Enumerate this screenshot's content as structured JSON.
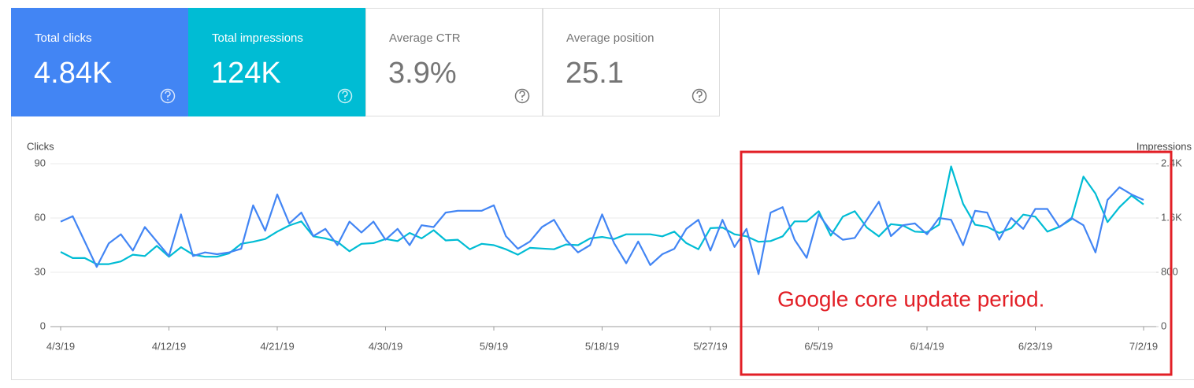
{
  "cards": [
    {
      "label": "Total clicks",
      "value": "4.84K"
    },
    {
      "label": "Total impressions",
      "value": "124K"
    },
    {
      "label": "Average CTR",
      "value": "3.9%"
    },
    {
      "label": "Average position",
      "value": "25.1"
    }
  ],
  "annotation": "Google core update period.",
  "chart_data": {
    "type": "line",
    "y_label": "Clicks",
    "y2_label": "Impressions",
    "categories": [
      "4/3/19",
      null,
      null,
      null,
      null,
      null,
      null,
      null,
      null,
      "4/12/19",
      null,
      null,
      null,
      null,
      null,
      null,
      null,
      null,
      "4/21/19",
      null,
      null,
      null,
      null,
      null,
      null,
      null,
      null,
      "4/30/19",
      null,
      null,
      null,
      null,
      null,
      null,
      null,
      null,
      "5/9/19",
      null,
      null,
      null,
      null,
      null,
      null,
      null,
      null,
      "5/18/19",
      null,
      null,
      null,
      null,
      null,
      null,
      null,
      null,
      "5/27/19",
      null,
      null,
      null,
      null,
      null,
      null,
      null,
      null,
      "6/5/19",
      null,
      null,
      null,
      null,
      null,
      null,
      null,
      null,
      "6/14/19",
      null,
      null,
      null,
      null,
      null,
      null,
      null,
      null,
      "6/23/19",
      null,
      null,
      null,
      null,
      null,
      null,
      null,
      null,
      "7/2/19"
    ],
    "series": [
      {
        "color": "#00bcd4",
        "axis": "y2",
        "values": [
          1100,
          1010,
          1010,
          920,
          920,
          960,
          1060,
          1040,
          1190,
          1030,
          1170,
          1060,
          1030,
          1030,
          1080,
          1220,
          1250,
          1290,
          1400,
          1490,
          1550,
          1330,
          1300,
          1250,
          1110,
          1220,
          1230,
          1290,
          1260,
          1380,
          1300,
          1420,
          1270,
          1280,
          1140,
          1220,
          1200,
          1140,
          1060,
          1160,
          1150,
          1140,
          1210,
          1200,
          1300,
          1320,
          1290,
          1360,
          1360,
          1360,
          1330,
          1400,
          1230,
          1140,
          1450,
          1460,
          1360,
          1330,
          1250,
          1260,
          1330,
          1550,
          1550,
          1700,
          1340,
          1620,
          1700,
          1460,
          1330,
          1510,
          1490,
          1400,
          1390,
          1500,
          2360,
          1810,
          1500,
          1470,
          1380,
          1450,
          1650,
          1620,
          1400,
          1470,
          1580,
          2210,
          1960,
          1540,
          1760,
          1930,
          1800
        ]
      },
      {
        "color": "#4285f4",
        "values": [
          58,
          61,
          47,
          33,
          46,
          51,
          42,
          55,
          47,
          39,
          62,
          39,
          41,
          40,
          41,
          43,
          67,
          53,
          73,
          57,
          63,
          50,
          54,
          45,
          58,
          52,
          58,
          48,
          54,
          45,
          56,
          55,
          63,
          64,
          64,
          64,
          67,
          50,
          43,
          47,
          55,
          59,
          48,
          41,
          45,
          62,
          46,
          35,
          47,
          34,
          40,
          43,
          54,
          59,
          42,
          59,
          44,
          54,
          29,
          63,
          66,
          48,
          38,
          62,
          53,
          48,
          49,
          59,
          69,
          50,
          56,
          57,
          51,
          60,
          59,
          45,
          64,
          63,
          48,
          60,
          54,
          65,
          65,
          55,
          60,
          56,
          41,
          70,
          77,
          73,
          70
        ]
      }
    ],
    "ylim": [
      0,
      90
    ],
    "yticks": [
      0,
      30,
      60,
      90
    ],
    "y2lim": [
      0,
      2400
    ],
    "y2ticks": [
      0,
      800,
      {
        "value": 1600,
        "label": "1.6K"
      },
      {
        "value": 2400,
        "label": "2.4K"
      }
    ],
    "grid": true
  }
}
